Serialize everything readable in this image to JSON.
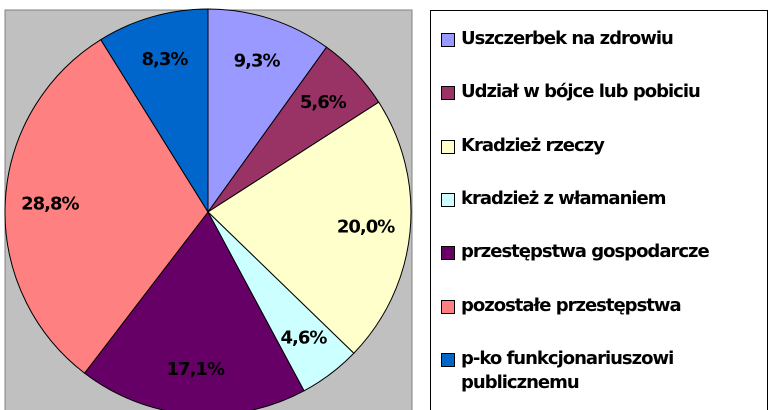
{
  "chart_data": {
    "type": "pie",
    "categories": [
      "Uszczerbek na zdrowiu",
      "Udział w bójce lub pobiciu",
      "Kradzież rzeczy",
      "kradzież z włamaniem",
      "przestępstwa gospodarcze",
      "pozostałe przestępstwa",
      "p-ko funkcjonariuszowi publicznemu"
    ],
    "values": [
      9.3,
      5.6,
      20.0,
      4.6,
      17.1,
      28.8,
      8.3
    ],
    "value_labels": [
      "9,3%",
      "5,6%",
      "20,0%",
      "4,6%",
      "17,1%",
      "28,8%",
      "8,3%"
    ],
    "colors": [
      "#9999ff",
      "#993366",
      "#ffffcc",
      "#ccffff",
      "#660066",
      "#ff8080",
      "#0066cc"
    ],
    "legend": "right"
  }
}
